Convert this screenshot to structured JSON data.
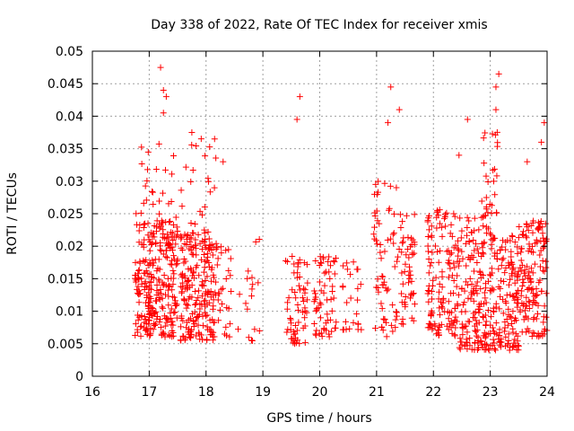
{
  "chart_data": {
    "type": "scatter",
    "title": "Day 338 of 2022, Rate Of TEC Index for receiver xmis",
    "xlabel": "GPS time / hours",
    "ylabel": "ROTI / TECUs",
    "xlim": [
      16,
      24
    ],
    "ylim": [
      0,
      0.05
    ],
    "x_ticks": [
      "16",
      "17",
      "18",
      "19",
      "20",
      "21",
      "22",
      "23",
      "24"
    ],
    "y_ticks": [
      "0",
      "0.005",
      "0.01",
      "0.015",
      "0.02",
      "0.025",
      "0.03",
      "0.035",
      "0.04",
      "0.045",
      "0.05"
    ],
    "grid": true,
    "marker": "+",
    "series_color": "#ff0000",
    "clusters": [
      {
        "x_range": [
          16.75,
          17.5
        ],
        "y_range": [
          0.006,
          0.024
        ],
        "count": 260
      },
      {
        "x_range": [
          16.75,
          17.5
        ],
        "y_range": [
          0.02,
          0.036
        ],
        "count": 40
      },
      {
        "x_range": [
          17.55,
          18.2
        ],
        "y_range": [
          0.0055,
          0.022
        ],
        "count": 200
      },
      {
        "x_range": [
          17.55,
          18.2
        ],
        "y_range": [
          0.02,
          0.037
        ],
        "count": 30
      },
      {
        "x_range": [
          18.2,
          18.45
        ],
        "y_range": [
          0.006,
          0.02
        ],
        "count": 25
      },
      {
        "x_range": [
          18.55,
          18.95
        ],
        "y_range": [
          0.005,
          0.022
        ],
        "count": 18
      },
      {
        "x_range": [
          19.4,
          19.8
        ],
        "y_range": [
          0.005,
          0.019
        ],
        "count": 60
      },
      {
        "x_range": [
          19.9,
          20.3
        ],
        "y_range": [
          0.006,
          0.019
        ],
        "count": 60
      },
      {
        "x_range": [
          20.4,
          20.75
        ],
        "y_range": [
          0.007,
          0.019
        ],
        "count": 25
      },
      {
        "x_range": [
          20.95,
          21.35
        ],
        "y_range": [
          0.006,
          0.03
        ],
        "count": 60
      },
      {
        "x_range": [
          21.35,
          21.7
        ],
        "y_range": [
          0.008,
          0.025
        ],
        "count": 55
      },
      {
        "x_range": [
          21.9,
          22.45
        ],
        "y_range": [
          0.006,
          0.026
        ],
        "count": 140
      },
      {
        "x_range": [
          22.45,
          23.0
        ],
        "y_range": [
          0.004,
          0.025
        ],
        "count": 160
      },
      {
        "x_range": [
          23.0,
          23.5
        ],
        "y_range": [
          0.004,
          0.022
        ],
        "count": 150
      },
      {
        "x_range": [
          23.5,
          24.0
        ],
        "y_range": [
          0.006,
          0.024
        ],
        "count": 140
      },
      {
        "x_range": [
          22.85,
          23.15
        ],
        "y_range": [
          0.025,
          0.038
        ],
        "count": 25
      }
    ],
    "outliers": [
      {
        "x": 17.2,
        "y": 0.0475
      },
      {
        "x": 17.25,
        "y": 0.044
      },
      {
        "x": 17.3,
        "y": 0.043
      },
      {
        "x": 17.25,
        "y": 0.0405
      },
      {
        "x": 17.75,
        "y": 0.0375
      },
      {
        "x": 18.15,
        "y": 0.0365
      },
      {
        "x": 18.3,
        "y": 0.033
      },
      {
        "x": 19.65,
        "y": 0.043
      },
      {
        "x": 19.6,
        "y": 0.0395
      },
      {
        "x": 21.25,
        "y": 0.0445
      },
      {
        "x": 21.4,
        "y": 0.041
      },
      {
        "x": 21.2,
        "y": 0.039
      },
      {
        "x": 22.45,
        "y": 0.034
      },
      {
        "x": 22.6,
        "y": 0.0395
      },
      {
        "x": 23.1,
        "y": 0.0445
      },
      {
        "x": 23.15,
        "y": 0.0465
      },
      {
        "x": 23.1,
        "y": 0.041
      },
      {
        "x": 23.95,
        "y": 0.039
      },
      {
        "x": 23.9,
        "y": 0.036
      },
      {
        "x": 23.65,
        "y": 0.033
      }
    ]
  }
}
